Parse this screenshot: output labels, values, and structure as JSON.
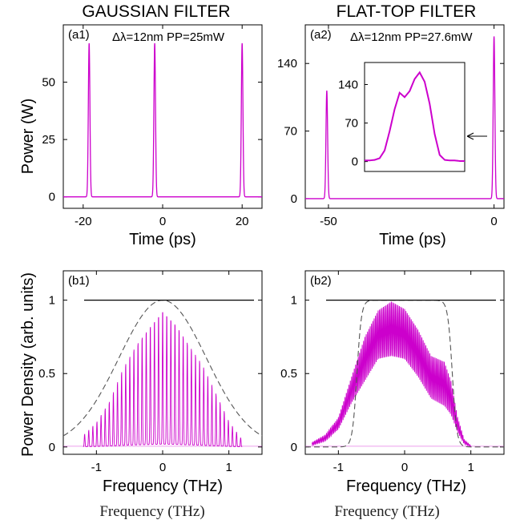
{
  "column_titles": [
    "GAUSSIAN FILTER",
    "FLAT-TOP FILTER"
  ],
  "footer_labels": [
    "Frequency (THz)",
    "Frequency (THz)"
  ],
  "colors": {
    "trace": "#cc00cc",
    "filter": "#555555",
    "reference": "#000000",
    "frame": "#000000"
  },
  "chart_data": [
    {
      "id": "a1",
      "type": "line",
      "panel_label": "(a1)",
      "annotation": "Δλ=12nm  PP=25mW",
      "xlabel": "Time (ps)",
      "ylabel": "Power (W)",
      "xlim": [
        -25,
        25
      ],
      "ylim": [
        -5,
        75
      ],
      "xticks": [
        -20,
        0,
        20
      ],
      "xtick_labels": [
        "-20",
        "0",
        "20"
      ],
      "yticks": [
        0,
        25,
        50
      ],
      "ytick_labels": [
        "0",
        "25",
        "50"
      ],
      "series": [
        {
          "kind": "pulses",
          "x_centers": [
            -18.5,
            -2.0,
            20.0
          ],
          "peaks": [
            67,
            67,
            67
          ],
          "width_ps": 0.2
        }
      ]
    },
    {
      "id": "a2",
      "type": "line",
      "panel_label": "(a2)",
      "annotation": "Δλ=12nm  PP=27.6mW",
      "xlabel": "Time (ps)",
      "ylabel": "",
      "xlim": [
        -57,
        3
      ],
      "ylim": [
        -10,
        180
      ],
      "xticks": [
        -50,
        0
      ],
      "xtick_labels": [
        "-50",
        "0"
      ],
      "yticks": [
        0,
        70,
        140
      ],
      "ytick_labels": [
        "0",
        "70",
        "140"
      ],
      "series": [
        {
          "kind": "pulses",
          "x_centers": [
            -50.5,
            0.0
          ],
          "peaks": [
            112,
            168
          ],
          "width_ps": 0.25
        }
      ],
      "inset": {
        "yticks": [
          0,
          70,
          140
        ],
        "ytick_labels": [
          "0",
          "70",
          "140"
        ],
        "ylim": [
          -18,
          180
        ],
        "x": [
          0,
          0.05,
          0.1,
          0.15,
          0.2,
          0.25,
          0.3,
          0.35,
          0.4,
          0.45,
          0.5,
          0.55,
          0.6,
          0.65,
          0.7,
          0.75,
          0.8,
          0.85,
          0.9,
          0.95,
          1.0
        ],
        "values": [
          2,
          2,
          3,
          6,
          20,
          55,
          95,
          125,
          117,
          128,
          150,
          162,
          145,
          105,
          50,
          12,
          3,
          2,
          2,
          1,
          1
        ]
      }
    },
    {
      "id": "b1",
      "type": "line",
      "panel_label": "(b1)",
      "xlabel": "Frequency (THz)",
      "ylabel": "Power Density (arb. units)",
      "xlim": [
        -1.5,
        1.5
      ],
      "ylim": [
        -0.05,
        1.2
      ],
      "xticks": [
        -1,
        0,
        1
      ],
      "xtick_labels": [
        "-1",
        "0",
        "1"
      ],
      "yticks": [
        0,
        0.5,
        1
      ],
      "ytick_labels": [
        "0",
        "0.5",
        "1"
      ],
      "reference_line": 1.0,
      "filter": {
        "kind": "gaussian",
        "center": 0,
        "sigma_thz": 0.66
      },
      "spectrum": {
        "x": [
          -1.2,
          -1.0,
          -0.8,
          -0.6,
          -0.4,
          -0.2,
          0,
          0.2,
          0.4,
          0.6,
          0.8,
          1.0,
          1.2
        ],
        "peak_values": [
          0.08,
          0.17,
          0.32,
          0.55,
          0.72,
          0.85,
          0.97,
          0.87,
          0.72,
          0.58,
          0.38,
          0.18,
          0.05
        ],
        "fringe_period_thz": 0.062
      }
    },
    {
      "id": "b2",
      "type": "line",
      "panel_label": "(b2)",
      "xlabel": "Frequency (THz)",
      "ylabel": "",
      "xlim": [
        -1.5,
        1.5
      ],
      "ylim": [
        -0.05,
        1.2
      ],
      "xticks": [
        -1,
        0,
        1
      ],
      "xtick_labels": [
        "-1",
        "0",
        "1"
      ],
      "yticks": [
        0,
        0.5,
        1
      ],
      "ytick_labels": [
        "0",
        "0.5",
        "1"
      ],
      "reference_line": 1.0,
      "filter": {
        "kind": "flat-top",
        "center": 0,
        "half_width_thz": 0.72,
        "edge_thz": 0.12
      },
      "spectrum": {
        "x": [
          -1.4,
          -1.2,
          -1.0,
          -0.8,
          -0.6,
          -0.4,
          -0.2,
          0,
          0.2,
          0.4,
          0.6,
          0.7,
          0.8,
          0.9,
          1.0
        ],
        "peak_values": [
          0.03,
          0.08,
          0.2,
          0.48,
          0.75,
          0.93,
          0.99,
          0.94,
          0.8,
          0.62,
          0.58,
          0.45,
          0.2,
          0.05,
          0.01
        ],
        "lower_values": [
          0.01,
          0.04,
          0.12,
          0.3,
          0.45,
          0.6,
          0.62,
          0.6,
          0.48,
          0.33,
          0.28,
          0.22,
          0.1,
          0.02,
          0.0
        ],
        "fringe_period_thz": 0.02
      }
    }
  ]
}
